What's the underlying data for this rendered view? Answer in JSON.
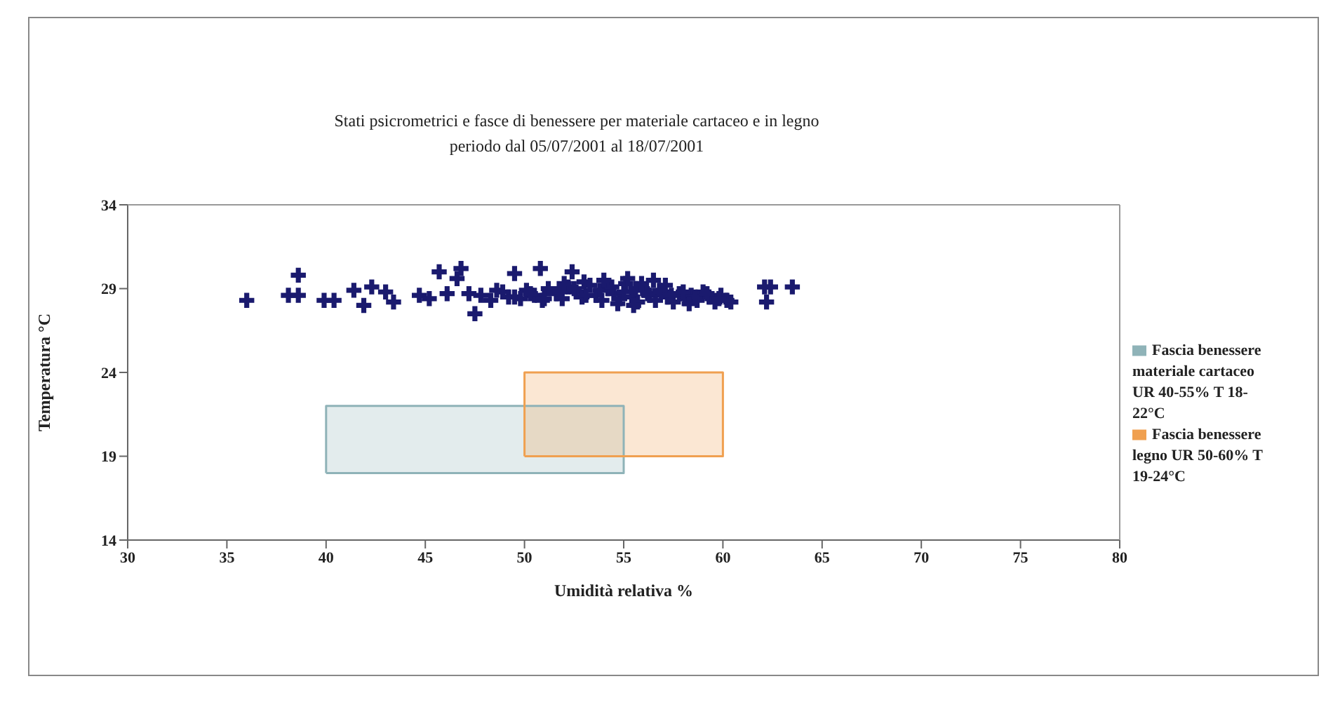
{
  "chart_data": {
    "type": "scatter",
    "title": "Stati psicrometrici e fasce di benessere per materiale cartaceo e in legno",
    "subtitle": "periodo dal 05/07/2001 al 18/07/2001",
    "xlabel": "Umidità relativa %",
    "ylabel": "Temperatura °C",
    "xlim": [
      30,
      80
    ],
    "xticks": [
      30,
      35,
      40,
      45,
      50,
      55,
      60,
      65,
      70,
      75,
      80
    ],
    "ylim": [
      14,
      34
    ],
    "yticks": [
      14,
      19,
      24,
      29,
      34
    ],
    "grid": false,
    "legend": "right",
    "series": [
      {
        "type": "area",
        "name": "Fascia benessere materiale cartaceo UR 40-55% T 18-22°C",
        "color": "#8fb3b8",
        "x": [
          40,
          40,
          55,
          55,
          40
        ],
        "values": [
          18,
          22,
          22,
          18,
          18
        ]
      },
      {
        "type": "area",
        "name": "Fascia benessere legno UR 50-60% T 19-24°C",
        "color": "#f0a050",
        "x": [
          50,
          50,
          60,
          60,
          50
        ],
        "values": [
          19,
          24,
          24,
          19,
          19
        ]
      },
      {
        "color": "#1a1a6e",
        "marker": "cross",
        "x": [
          36.0,
          38.6,
          38.1,
          38.6,
          39.9,
          40.4,
          41.4,
          41.9,
          42.3,
          43.0,
          43.4,
          44.7,
          45.2,
          45.7,
          46.8,
          46.6,
          46.1,
          47.2,
          47.5,
          49.5,
          50.8,
          52.4,
          62.1,
          62.4,
          63.5,
          62.2,
          47.8,
          48.3,
          48.9,
          49.2,
          49.8,
          50.1,
          50.5,
          50.9,
          51.2,
          51.6,
          51.9,
          52.2,
          52.6,
          52.9,
          53.3,
          53.6,
          53.9,
          54.2,
          54.5,
          54.8,
          55.1,
          55.4,
          55.7,
          56.0,
          56.3,
          56.6,
          56.9,
          57.2,
          57.5,
          57.8,
          58.1,
          58.4,
          58.7,
          59.0,
          59.3,
          59.6,
          59.9,
          60.2,
          48.6,
          49.5,
          50.3,
          51.0,
          51.8,
          52.5,
          53.1,
          53.8,
          54.4,
          55.0,
          55.6,
          56.2,
          56.8,
          57.4,
          58.0,
          58.6,
          59.2,
          59.8,
          53.0,
          54.0,
          55.2,
          55.9,
          56.5,
          57.1,
          52.0,
          54.7,
          55.5,
          58.3,
          60.4
        ],
        "values": [
          28.3,
          29.8,
          28.6,
          28.6,
          28.3,
          28.3,
          28.9,
          28.0,
          29.1,
          28.8,
          28.2,
          28.6,
          28.4,
          30.0,
          30.2,
          29.6,
          28.7,
          28.7,
          27.5,
          29.9,
          30.2,
          30.0,
          29.1,
          29.1,
          29.1,
          28.2,
          28.6,
          28.3,
          28.8,
          28.5,
          28.4,
          28.9,
          28.6,
          28.3,
          29.0,
          28.7,
          28.4,
          29.1,
          28.8,
          28.5,
          29.2,
          28.6,
          28.3,
          29.0,
          28.7,
          28.4,
          29.3,
          28.5,
          28.2,
          28.9,
          28.6,
          28.3,
          28.8,
          28.5,
          28.2,
          28.7,
          28.4,
          28.6,
          28.3,
          28.8,
          28.5,
          28.2,
          28.6,
          28.3,
          28.9,
          28.5,
          28.7,
          28.4,
          28.8,
          29.0,
          28.6,
          28.9,
          29.1,
          28.8,
          29.0,
          28.7,
          28.9,
          28.6,
          28.8,
          28.5,
          28.7,
          28.4,
          29.4,
          29.5,
          29.6,
          29.3,
          29.5,
          29.2,
          29.3,
          28.1,
          28.0,
          28.1,
          28.2
        ]
      }
    ]
  }
}
